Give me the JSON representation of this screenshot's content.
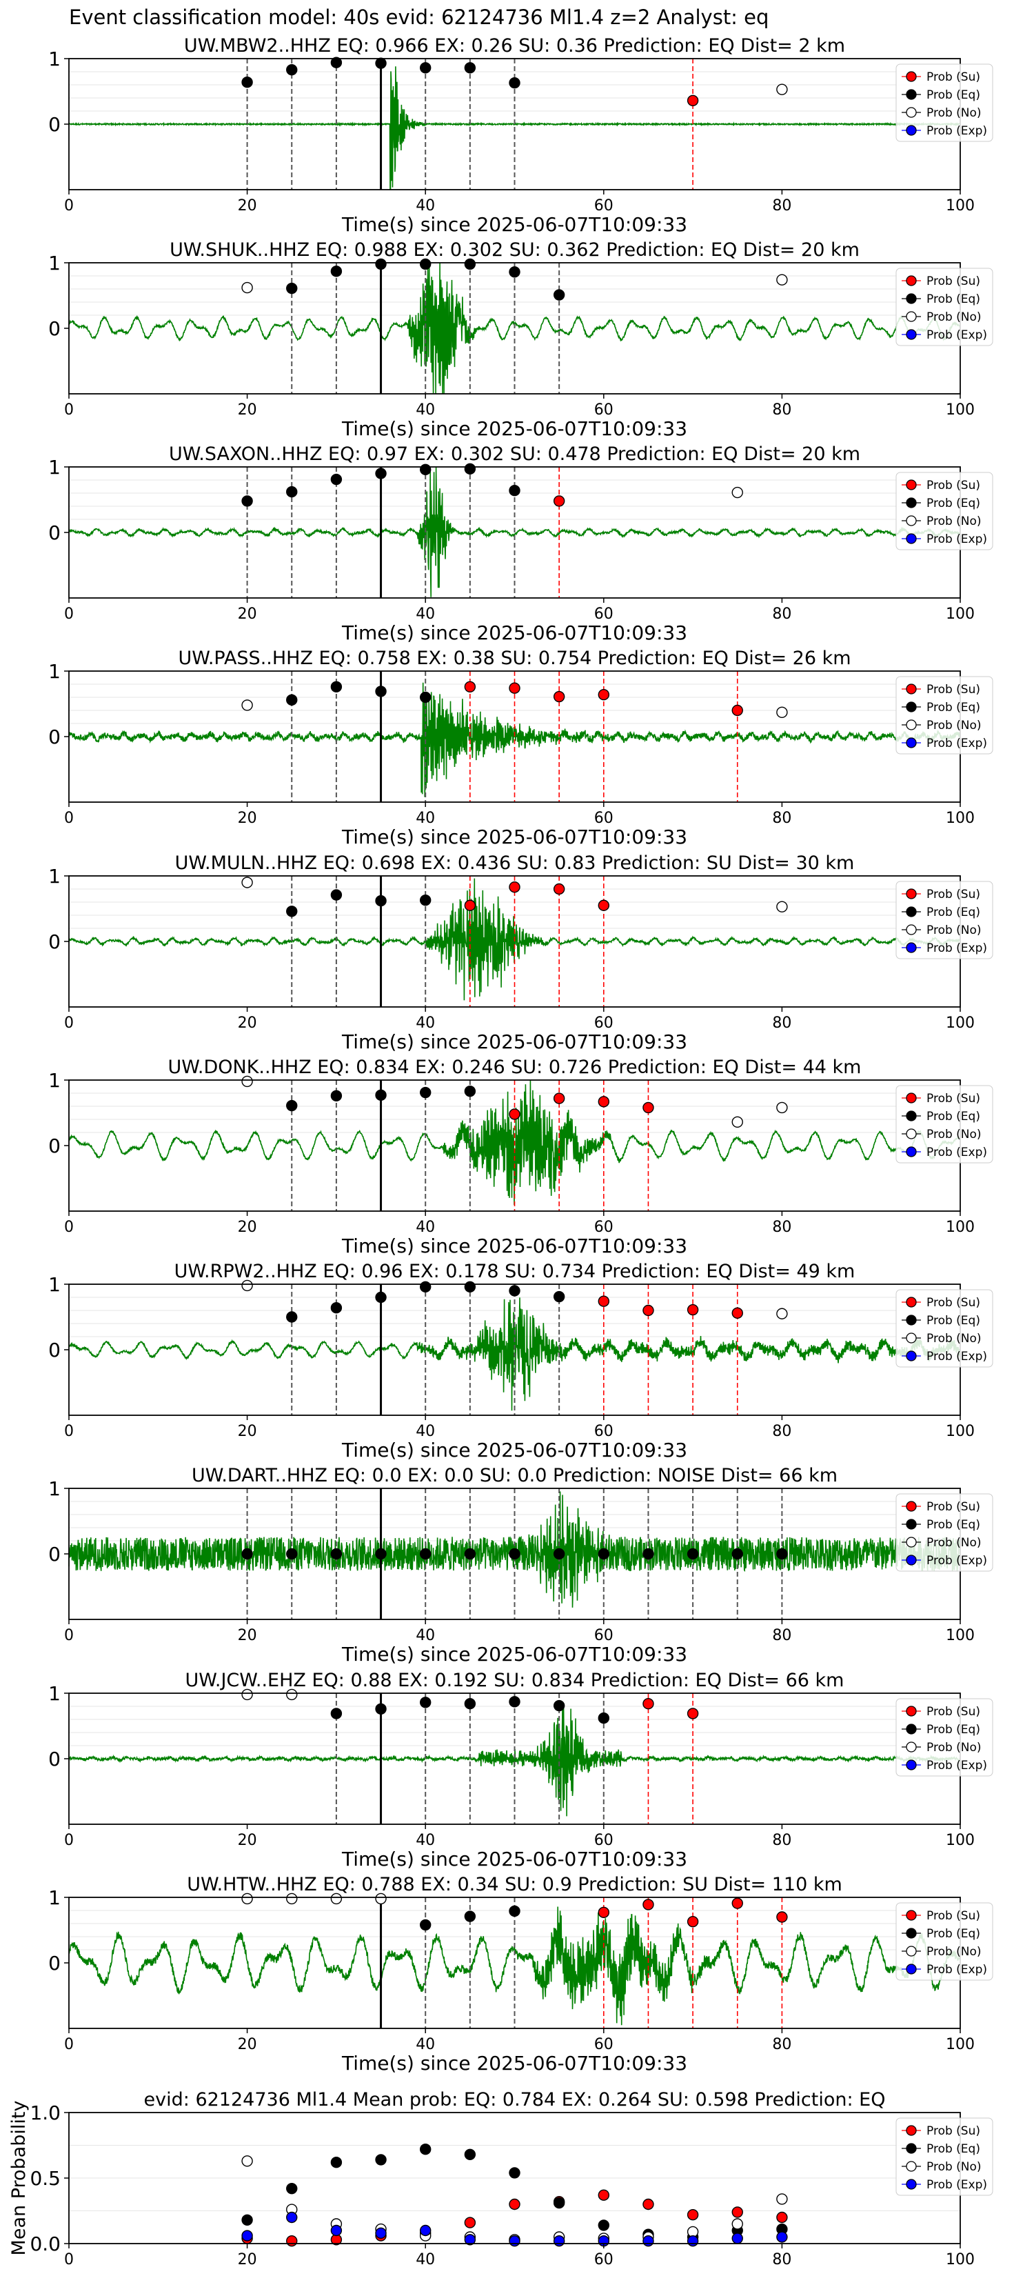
{
  "figure_title": "Event classification model: 40s evid: 62124736 Ml1.4 z=2 Analyst: eq",
  "colors": {
    "trace": "#008000",
    "su": "#ff0000",
    "eq": "#000000",
    "no": "#ffffff",
    "exp": "#0000ff",
    "su_line": "#ff0000",
    "window_line": "#000000",
    "grid": "#e6e6e6"
  },
  "chart_data": [
    {
      "type": "line",
      "title": "UW.MBW2..HHZ   EQ: 0.966  EX: 0.26  SU: 0.36   Prediction: EQ    Dist= 2 km",
      "xlabel": "Time(s) since 2025-06-07T10:09:33",
      "xlim": [
        0,
        100
      ],
      "ylim": [
        -1,
        1
      ],
      "x_ticks": [
        "0",
        "20",
        "40",
        "60",
        "80",
        "100"
      ],
      "y_ticks": [
        "0",
        "1"
      ],
      "onset": 35,
      "trace": {
        "style": "mbw2",
        "amp": 0.95
      },
      "eq_lines": [
        20,
        25,
        30,
        40,
        45,
        50
      ],
      "su_lines": [
        70
      ],
      "eq_points": [
        [
          20,
          0.64
        ],
        [
          25,
          0.83
        ],
        [
          30,
          0.94
        ],
        [
          35,
          0.93
        ],
        [
          40,
          0.86
        ],
        [
          45,
          0.86
        ],
        [
          50,
          0.63
        ]
      ],
      "su_points": [
        [
          70,
          0.36
        ]
      ],
      "no_points": [
        [
          80,
          0.53
        ]
      ],
      "exp_points": [],
      "legend": [
        "Prob (Su)",
        "Prob (Eq)",
        "Prob (No)",
        "Prob (Exp)"
      ]
    },
    {
      "type": "line",
      "title": "UW.SHUK..HHZ   EQ: 0.988  EX: 0.302  SU: 0.362   Prediction: EQ    Dist= 20 km",
      "xlabel": "Time(s) since 2025-06-07T10:09:33",
      "xlim": [
        0,
        100
      ],
      "ylim": [
        -1,
        1
      ],
      "x_ticks": [
        "0",
        "20",
        "40",
        "60",
        "80",
        "100"
      ],
      "y_ticks": [
        "0",
        "1"
      ],
      "onset": 35,
      "trace": {
        "style": "shuk",
        "amp": 0.95
      },
      "eq_lines": [
        25,
        30,
        40,
        45,
        50,
        55
      ],
      "su_lines": [],
      "eq_points": [
        [
          25,
          0.61
        ],
        [
          30,
          0.87
        ],
        [
          35,
          0.98
        ],
        [
          40,
          0.98
        ],
        [
          45,
          0.98
        ],
        [
          50,
          0.86
        ],
        [
          55,
          0.51
        ]
      ],
      "su_points": [],
      "no_points": [
        [
          20,
          0.62
        ],
        [
          80,
          0.74
        ]
      ],
      "exp_points": [],
      "legend": [
        "Prob (Su)",
        "Prob (Eq)",
        "Prob (No)",
        "Prob (Exp)"
      ]
    },
    {
      "type": "line",
      "title": "UW.SAXON..HHZ   EQ: 0.97  EX: 0.302  SU: 0.478   Prediction: EQ    Dist= 20 km",
      "xlabel": "Time(s) since 2025-06-07T10:09:33",
      "xlim": [
        0,
        100
      ],
      "ylim": [
        -1,
        1
      ],
      "x_ticks": [
        "0",
        "20",
        "40",
        "60",
        "80",
        "100"
      ],
      "y_ticks": [
        "0",
        "1"
      ],
      "onset": 35,
      "trace": {
        "style": "saxon",
        "amp": 0.95
      },
      "eq_lines": [
        20,
        25,
        30,
        40,
        45,
        50
      ],
      "su_lines": [
        55
      ],
      "eq_points": [
        [
          20,
          0.48
        ],
        [
          25,
          0.62
        ],
        [
          30,
          0.81
        ],
        [
          35,
          0.9
        ],
        [
          40,
          0.96
        ],
        [
          45,
          0.97
        ],
        [
          50,
          0.64
        ]
      ],
      "su_points": [
        [
          55,
          0.48
        ]
      ],
      "no_points": [
        [
          75,
          0.61
        ]
      ],
      "exp_points": [],
      "legend": [
        "Prob (Su)",
        "Prob (Eq)",
        "Prob (No)",
        "Prob (Exp)"
      ]
    },
    {
      "type": "line",
      "title": "UW.PASS..HHZ   EQ: 0.758  EX: 0.38  SU: 0.754   Prediction: EQ    Dist= 26 km",
      "xlabel": "Time(s) since 2025-06-07T10:09:33",
      "xlim": [
        0,
        100
      ],
      "ylim": [
        -1,
        1
      ],
      "x_ticks": [
        "0",
        "20",
        "40",
        "60",
        "80",
        "100"
      ],
      "y_ticks": [
        "0",
        "1"
      ],
      "onset": 35,
      "trace": {
        "style": "pass",
        "amp": 0.95
      },
      "eq_lines": [
        25,
        30,
        40
      ],
      "su_lines": [
        45,
        50,
        55,
        60,
        75
      ],
      "eq_points": [
        [
          25,
          0.56
        ],
        [
          30,
          0.76
        ],
        [
          35,
          0.69
        ],
        [
          40,
          0.6
        ]
      ],
      "su_points": [
        [
          45,
          0.76
        ],
        [
          50,
          0.74
        ],
        [
          55,
          0.61
        ],
        [
          60,
          0.64
        ],
        [
          75,
          0.4
        ]
      ],
      "no_points": [
        [
          20,
          0.48
        ],
        [
          80,
          0.37
        ]
      ],
      "exp_points": [],
      "legend": [
        "Prob (Su)",
        "Prob (Eq)",
        "Prob (No)",
        "Prob (Exp)"
      ]
    },
    {
      "type": "line",
      "title": "UW.MULN..HHZ   EQ: 0.698  EX: 0.436  SU: 0.83   Prediction: SU    Dist= 30 km",
      "xlabel": "Time(s) since 2025-06-07T10:09:33",
      "xlim": [
        0,
        100
      ],
      "ylim": [
        -1,
        1
      ],
      "x_ticks": [
        "0",
        "20",
        "40",
        "60",
        "80",
        "100"
      ],
      "y_ticks": [
        "0",
        "1"
      ],
      "onset": 35,
      "trace": {
        "style": "muln",
        "amp": 0.95
      },
      "eq_lines": [
        25,
        30,
        40
      ],
      "su_lines": [
        45,
        50,
        55,
        60
      ],
      "eq_points": [
        [
          25,
          0.46
        ],
        [
          30,
          0.71
        ],
        [
          35,
          0.62
        ],
        [
          40,
          0.63
        ]
      ],
      "su_points": [
        [
          45,
          0.55
        ],
        [
          50,
          0.83
        ],
        [
          55,
          0.8
        ],
        [
          60,
          0.55
        ]
      ],
      "no_points": [
        [
          20,
          0.9
        ],
        [
          80,
          0.53
        ]
      ],
      "exp_points": [],
      "legend": [
        "Prob (Su)",
        "Prob (Eq)",
        "Prob (No)",
        "Prob (Exp)"
      ]
    },
    {
      "type": "line",
      "title": "UW.DONK..HHZ   EQ: 0.834  EX: 0.246  SU: 0.726   Prediction: EQ    Dist= 44 km",
      "xlabel": "Time(s) since 2025-06-07T10:09:33",
      "xlim": [
        0,
        100
      ],
      "ylim": [
        -1,
        1
      ],
      "x_ticks": [
        "0",
        "20",
        "40",
        "60",
        "80",
        "100"
      ],
      "y_ticks": [
        "0",
        "1"
      ],
      "onset": 35,
      "trace": {
        "style": "donk",
        "amp": 0.95
      },
      "eq_lines": [
        25,
        30,
        40,
        45
      ],
      "su_lines": [
        50,
        55,
        60,
        65
      ],
      "eq_points": [
        [
          25,
          0.61
        ],
        [
          30,
          0.76
        ],
        [
          35,
          0.77
        ],
        [
          40,
          0.81
        ],
        [
          45,
          0.83
        ]
      ],
      "su_points": [
        [
          50,
          0.48
        ],
        [
          55,
          0.72
        ],
        [
          60,
          0.67
        ],
        [
          65,
          0.58
        ]
      ],
      "no_points": [
        [
          20,
          0.98
        ],
        [
          75,
          0.36
        ],
        [
          80,
          0.58
        ]
      ],
      "exp_points": [],
      "legend": [
        "Prob (Su)",
        "Prob (Eq)",
        "Prob (No)",
        "Prob (Exp)"
      ]
    },
    {
      "type": "line",
      "title": "UW.RPW2..HHZ   EQ: 0.96  EX: 0.178  SU: 0.734   Prediction: EQ    Dist= 49 km",
      "xlabel": "Time(s) since 2025-06-07T10:09:33",
      "xlim": [
        0,
        100
      ],
      "ylim": [
        -1,
        1
      ],
      "x_ticks": [
        "0",
        "20",
        "40",
        "60",
        "80",
        "100"
      ],
      "y_ticks": [
        "0",
        "1"
      ],
      "onset": 35,
      "trace": {
        "style": "rpw2",
        "amp": 0.95
      },
      "eq_lines": [
        25,
        30,
        40,
        45,
        50,
        55
      ],
      "su_lines": [
        60,
        65,
        70,
        75
      ],
      "eq_points": [
        [
          25,
          0.5
        ],
        [
          30,
          0.64
        ],
        [
          35,
          0.8
        ],
        [
          40,
          0.96
        ],
        [
          45,
          0.96
        ],
        [
          50,
          0.9
        ],
        [
          55,
          0.81
        ]
      ],
      "su_points": [
        [
          60,
          0.74
        ],
        [
          65,
          0.6
        ],
        [
          70,
          0.61
        ],
        [
          75,
          0.56
        ]
      ],
      "no_points": [
        [
          20,
          0.98
        ],
        [
          80,
          0.55
        ]
      ],
      "exp_points": [],
      "legend": [
        "Prob (Su)",
        "Prob (Eq)",
        "Prob (No)",
        "Prob (Exp)"
      ]
    },
    {
      "type": "line",
      "title": "UW.DART..HHZ   EQ: 0.0  EX: 0.0  SU: 0.0   Prediction: NOISE    Dist= 66 km",
      "xlabel": "Time(s) since 2025-06-07T10:09:33",
      "xlim": [
        0,
        100
      ],
      "ylim": [
        -1,
        1
      ],
      "x_ticks": [
        "0",
        "20",
        "40",
        "60",
        "80",
        "100"
      ],
      "y_ticks": [
        "0",
        "1"
      ],
      "onset": 35,
      "trace": {
        "style": "dart",
        "amp": 0.95
      },
      "eq_lines": [
        20,
        25,
        30,
        40,
        45,
        50,
        55,
        60,
        65,
        70,
        75,
        80
      ],
      "su_lines": [],
      "eq_points": [
        [
          20,
          0.0
        ],
        [
          25,
          0.0
        ],
        [
          30,
          0.0
        ],
        [
          35,
          0.0
        ],
        [
          40,
          0.0
        ],
        [
          45,
          0.0
        ],
        [
          50,
          0.0
        ],
        [
          55,
          0.0
        ],
        [
          60,
          0.0
        ],
        [
          65,
          0.0
        ],
        [
          70,
          0.0
        ],
        [
          75,
          0.0
        ],
        [
          80,
          0.0
        ]
      ],
      "su_points": [],
      "no_points": [],
      "exp_points": [],
      "legend": [
        "Prob (Su)",
        "Prob (Eq)",
        "Prob (No)",
        "Prob (Exp)"
      ]
    },
    {
      "type": "line",
      "title": "UW.JCW..EHZ   EQ: 0.88  EX: 0.192  SU: 0.834   Prediction: EQ    Dist= 66 km",
      "xlabel": "Time(s) since 2025-06-07T10:09:33",
      "xlim": [
        0,
        100
      ],
      "ylim": [
        -1,
        1
      ],
      "x_ticks": [
        "0",
        "20",
        "40",
        "60",
        "80",
        "100"
      ],
      "y_ticks": [
        "0",
        "1"
      ],
      "onset": 35,
      "trace": {
        "style": "jcw",
        "amp": 0.95
      },
      "eq_lines": [
        30,
        40,
        45,
        50,
        55,
        60
      ],
      "su_lines": [
        65,
        70
      ],
      "eq_points": [
        [
          30,
          0.69
        ],
        [
          35,
          0.76
        ],
        [
          40,
          0.86
        ],
        [
          45,
          0.84
        ],
        [
          50,
          0.87
        ],
        [
          55,
          0.81
        ],
        [
          60,
          0.62
        ]
      ],
      "su_points": [
        [
          65,
          0.84
        ],
        [
          70,
          0.69
        ]
      ],
      "no_points": [
        [
          20,
          0.98
        ],
        [
          25,
          0.98
        ]
      ],
      "exp_points": [],
      "legend": [
        "Prob (Su)",
        "Prob (Eq)",
        "Prob (No)",
        "Prob (Exp)"
      ]
    },
    {
      "type": "line",
      "title": "UW.HTW..HHZ   EQ: 0.788  EX: 0.34  SU: 0.9   Prediction: SU    Dist= 110 km",
      "xlabel": "Time(s) since 2025-06-07T10:09:33",
      "xlim": [
        0,
        100
      ],
      "ylim": [
        -1,
        1
      ],
      "x_ticks": [
        "0",
        "20",
        "40",
        "60",
        "80",
        "100"
      ],
      "y_ticks": [
        "0",
        "1"
      ],
      "onset": 35,
      "trace": {
        "style": "htw",
        "amp": 0.95
      },
      "eq_lines": [
        40,
        45,
        50
      ],
      "su_lines": [
        60,
        65,
        70,
        75,
        80
      ],
      "eq_points": [
        [
          40,
          0.58
        ],
        [
          45,
          0.71
        ],
        [
          50,
          0.79
        ]
      ],
      "su_points": [
        [
          60,
          0.77
        ],
        [
          65,
          0.89
        ],
        [
          70,
          0.63
        ],
        [
          75,
          0.91
        ],
        [
          80,
          0.7
        ]
      ],
      "no_points": [
        [
          20,
          0.98
        ],
        [
          25,
          0.98
        ],
        [
          30,
          0.98
        ],
        [
          35,
          0.98
        ]
      ],
      "exp_points": [],
      "legend": [
        "Prob (Su)",
        "Prob (Eq)",
        "Prob (No)",
        "Prob (Exp)"
      ]
    },
    {
      "type": "scatter",
      "title": "evid: 62124736  Ml1.4   Mean prob:   EQ: 0.784  EX: 0.264  SU: 0.598   Prediction: EQ",
      "xlabel": "",
      "ylabel": "Mean Probability",
      "xlim": [
        0,
        100
      ],
      "ylim": [
        0,
        1
      ],
      "x_ticks": [
        "0",
        "20",
        "40",
        "60",
        "80",
        "100"
      ],
      "y_ticks": [
        "0.0",
        "0.5",
        "1.0"
      ],
      "series": [
        {
          "name": "Prob (Su)",
          "points": [
            [
              20,
              0.04
            ],
            [
              25,
              0.02
            ],
            [
              30,
              0.03
            ],
            [
              35,
              0.06
            ],
            [
              40,
              0.08
            ],
            [
              45,
              0.16
            ],
            [
              50,
              0.3
            ],
            [
              55,
              0.32
            ],
            [
              60,
              0.37
            ],
            [
              65,
              0.3
            ],
            [
              70,
              0.22
            ],
            [
              75,
              0.24
            ],
            [
              80,
              0.2
            ]
          ]
        },
        {
          "name": "Prob (Eq)",
          "points": [
            [
              20,
              0.18
            ],
            [
              25,
              0.42
            ],
            [
              30,
              0.62
            ],
            [
              35,
              0.64
            ],
            [
              40,
              0.72
            ],
            [
              45,
              0.68
            ],
            [
              50,
              0.54
            ],
            [
              55,
              0.31
            ],
            [
              60,
              0.14
            ],
            [
              65,
              0.07
            ],
            [
              70,
              0.05
            ],
            [
              75,
              0.1
            ],
            [
              80,
              0.11
            ]
          ]
        },
        {
          "name": "Prob (No)",
          "points": [
            [
              20,
              0.63
            ],
            [
              25,
              0.26
            ],
            [
              30,
              0.15
            ],
            [
              35,
              0.11
            ],
            [
              40,
              0.06
            ],
            [
              45,
              0.05
            ],
            [
              50,
              0.03
            ],
            [
              55,
              0.05
            ],
            [
              60,
              0.04
            ],
            [
              65,
              0.05
            ],
            [
              70,
              0.09
            ],
            [
              75,
              0.15
            ],
            [
              80,
              0.34
            ]
          ]
        },
        {
          "name": "Prob (Exp)",
          "points": [
            [
              20,
              0.06
            ],
            [
              25,
              0.2
            ],
            [
              30,
              0.1
            ],
            [
              35,
              0.08
            ],
            [
              40,
              0.1
            ],
            [
              45,
              0.03
            ],
            [
              50,
              0.02
            ],
            [
              55,
              0.02
            ],
            [
              60,
              0.02
            ],
            [
              65,
              0.02
            ],
            [
              70,
              0.02
            ],
            [
              75,
              0.04
            ],
            [
              80,
              0.05
            ]
          ]
        }
      ],
      "legend": [
        "Prob (Su)",
        "Prob (Eq)",
        "Prob (No)",
        "Prob (Exp)"
      ]
    }
  ]
}
